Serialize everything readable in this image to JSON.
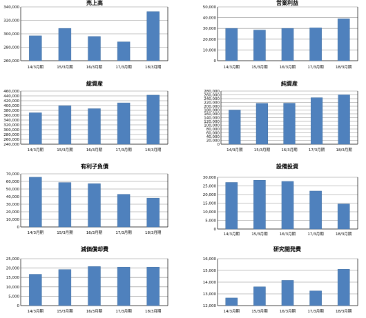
{
  "colors": {
    "bar": "#4F81BD",
    "bar_edge": "#3A6A9F",
    "grid": "#888888",
    "axis": "#000000"
  },
  "chart_data": [
    {
      "type": "bar",
      "title": "売上高",
      "categories": [
        "14/3月期",
        "15/3月期",
        "16/3月期",
        "17/3月期",
        "18/3月期"
      ],
      "values": [
        297000,
        308000,
        296000,
        288000,
        333000
      ],
      "yticks": [
        "340,000",
        "320,000",
        "300,000",
        "280,000",
        "260,000"
      ],
      "ylim": [
        260000,
        340000
      ],
      "ystep": 20000,
      "grid": true
    },
    {
      "type": "bar",
      "title": "営業利益",
      "categories": [
        "14/3月期",
        "15/3月期",
        "16/3月期",
        "17/3月期",
        "18/3月期"
      ],
      "values": [
        30000,
        28500,
        30000,
        30500,
        39000
      ],
      "yticks": [
        "50,000",
        "40,000",
        "30,000",
        "20,000",
        "10,000",
        "0"
      ],
      "ylim": [
        0,
        50000
      ],
      "ystep": 10000,
      "grid": true
    },
    {
      "type": "bar",
      "title": "総資産",
      "categories": [
        "14/3月期",
        "15/3月期",
        "16/3月期",
        "17/3月期",
        "18/3月期"
      ],
      "values": [
        370000,
        399000,
        387000,
        411000,
        443000
      ],
      "yticks": [
        "460,000",
        "440,000",
        "420,000",
        "400,000",
        "380,000",
        "360,000",
        "340,000",
        "320,000",
        "300,000",
        "280,000",
        "260,000",
        "240,000"
      ],
      "ylim": [
        240000,
        460000
      ],
      "ystep": 20000,
      "grid": true
    },
    {
      "type": "bar",
      "title": "純資産",
      "categories": [
        "14/3月期",
        "15/3月期",
        "16/3月期",
        "17/3月期",
        "18/3月期"
      ],
      "values": [
        180000,
        215000,
        216000,
        245000,
        260000
      ],
      "yticks": [
        "280,000",
        "260,000",
        "240,000",
        "220,000",
        "200,000",
        "180,000",
        "160,000",
        "140,000",
        "120,000",
        "100,000",
        "80,000",
        "60,000",
        "40,000",
        "20,000",
        "0"
      ],
      "ylim": [
        0,
        280000
      ],
      "ystep": 20000,
      "grid": true
    },
    {
      "type": "bar",
      "title": "有利子負債",
      "categories": [
        "14/3月期",
        "15/3月期",
        "16/3月期",
        "17/3月期",
        "18/3月期"
      ],
      "values": [
        65500,
        58500,
        57000,
        43000,
        38000
      ],
      "yticks": [
        "70,000",
        "60,000",
        "50,000",
        "40,000",
        "30,000",
        "20,000",
        "10,000",
        "0"
      ],
      "ylim": [
        0,
        70000
      ],
      "ystep": 10000,
      "grid": true
    },
    {
      "type": "bar",
      "title": "設備投資",
      "categories": [
        "14/3月期",
        "15/3月期",
        "16/3月期",
        "17/3月期",
        "18/3月期"
      ],
      "values": [
        27000,
        28300,
        27600,
        22000,
        14500
      ],
      "yticks": [
        "30,000",
        "25,000",
        "20,000",
        "15,000",
        "10,000",
        "5,000",
        "0"
      ],
      "ylim": [
        0,
        30000
      ],
      "ystep": 5000,
      "grid": true
    },
    {
      "type": "bar",
      "title": "減価償却費",
      "categories": [
        "14/3月期",
        "15/3月期",
        "16/3月期",
        "17/3月期",
        "18/3月期"
      ],
      "values": [
        16700,
        19200,
        20800,
        20500,
        20500
      ],
      "yticks": [
        "25,000",
        "20,000",
        "15,000",
        "10,000",
        "5,000",
        "0"
      ],
      "ylim": [
        0,
        25000
      ],
      "ystep": 5000,
      "grid": true
    },
    {
      "type": "bar",
      "title": "研究開発費",
      "categories": [
        "14/3月期",
        "15/3月期",
        "16/3月期",
        "17/3月期",
        "18/3月期"
      ],
      "values": [
        12650,
        13600,
        14150,
        13250,
        15100
      ],
      "yticks": [
        "16,000",
        "15,000",
        "14,000",
        "13,000",
        "12,000"
      ],
      "ylim": [
        12000,
        16000
      ],
      "ystep": 1000,
      "grid": true
    }
  ]
}
